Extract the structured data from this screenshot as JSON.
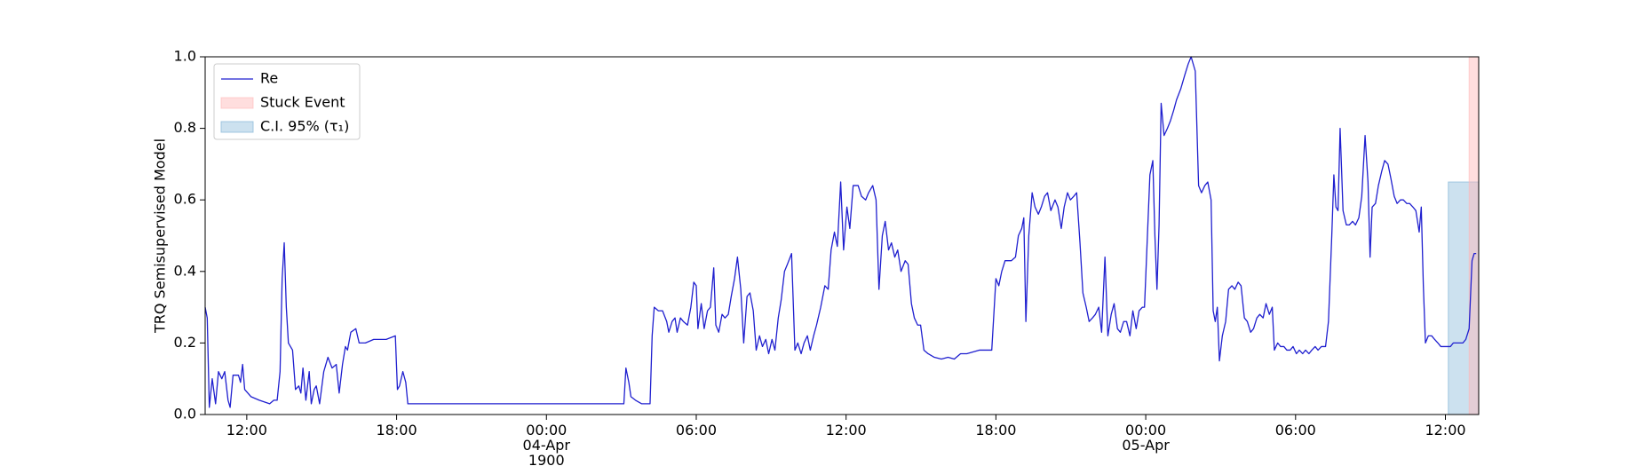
{
  "chart_data": {
    "type": "line",
    "ylabel": "TRQ Semisupervised Model",
    "xlim": [
      "1900-04-03T10:20",
      "1900-04-05T13:20"
    ],
    "ylim": [
      0,
      1
    ],
    "yticks": [
      {
        "value": 0,
        "label": "0.0"
      },
      0.2,
      0.4,
      0.6,
      0.8,
      {
        "value": 1,
        "label": "1.0"
      }
    ],
    "xticks": [
      {
        "value": "1900-04-03T12:00",
        "label": "12:00"
      },
      {
        "value": "1900-04-03T18:00",
        "label": "18:00"
      },
      {
        "value": "1900-04-04T00:00",
        "label": "00:00\n04-Apr\n1900"
      },
      {
        "value": "1900-04-04T06:00",
        "label": "06:00"
      },
      {
        "value": "1900-04-04T12:00",
        "label": "12:00"
      },
      {
        "value": "1900-04-04T18:00",
        "label": "18:00"
      },
      {
        "value": "1900-04-05T00:00",
        "label": "00:00\n05-Apr"
      },
      {
        "value": "1900-04-05T06:00",
        "label": "06:00"
      },
      {
        "value": "1900-04-05T12:00",
        "label": "12:00"
      }
    ],
    "legend": "upper left",
    "stuck_event": {
      "name": "Stuck Event",
      "color": "#ffb6b6",
      "x": [
        "1900-04-05T12:57",
        "1900-04-05T13:20"
      ]
    },
    "ci": {
      "name": "C.I. 95% (τ₁)",
      "color": "#8fbcdb",
      "x": [
        "1900-04-05T12:07",
        "1900-04-05T13:20"
      ],
      "values": [
        0,
        0.65
      ]
    },
    "x": [
      "1900-04-03T10:20",
      "1900-04-03T10:25",
      "1900-04-03T10:30",
      "1900-04-03T10:37",
      "1900-04-03T10:45",
      "1900-04-03T10:52",
      "1900-04-03T11:00",
      "1900-04-03T11:07",
      "1900-04-03T11:15",
      "1900-04-03T11:20",
      "1900-04-03T11:27",
      "1900-04-03T11:40",
      "1900-04-03T11:45",
      "1900-04-03T11:50",
      "1900-04-03T11:55",
      "1900-04-03T12:10",
      "1900-04-03T12:30",
      "1900-04-03T12:55",
      "1900-04-03T13:05",
      "1900-04-03T13:13",
      "1900-04-03T13:20",
      "1900-04-03T13:25",
      "1900-04-03T13:30",
      "1900-04-03T13:35",
      "1900-04-03T13:40",
      "1900-04-03T13:50",
      "1900-04-03T13:57",
      "1900-04-03T14:05",
      "1900-04-03T14:10",
      "1900-04-03T14:15",
      "1900-04-03T14:22",
      "1900-04-03T14:30",
      "1900-04-03T14:35",
      "1900-04-03T14:42",
      "1900-04-03T14:47",
      "1900-04-03T14:55",
      "1900-04-03T15:05",
      "1900-04-03T15:15",
      "1900-04-03T15:25",
      "1900-04-03T15:35",
      "1900-04-03T15:42",
      "1900-04-03T15:50",
      "1900-04-03T15:57",
      "1900-04-03T16:02",
      "1900-04-03T16:10",
      "1900-04-03T16:22",
      "1900-04-03T16:30",
      "1900-04-03T16:45",
      "1900-04-03T17:05",
      "1900-04-03T17:35",
      "1900-04-03T17:57",
      "1900-04-03T18:02",
      "1900-04-03T18:07",
      "1900-04-03T18:15",
      "1900-04-03T18:22",
      "1900-04-03T18:27",
      "1900-04-03T22:00",
      "1900-04-04T01:00",
      "1900-04-04T03:06",
      "1900-04-04T03:11",
      "1900-04-04T03:18",
      "1900-04-04T03:23",
      "1900-04-04T03:34",
      "1900-04-04T03:49",
      "1900-04-04T04:09",
      "1900-04-04T04:14",
      "1900-04-04T04:19",
      "1900-04-04T04:29",
      "1900-04-04T04:39",
      "1900-04-04T04:49",
      "1900-04-04T04:54",
      "1900-04-04T05:02",
      "1900-04-04T05:09",
      "1900-04-04T05:14",
      "1900-04-04T05:22",
      "1900-04-04T05:29",
      "1900-04-04T05:39",
      "1900-04-04T05:47",
      "1900-04-04T05:54",
      "1900-04-04T06:00",
      "1900-04-04T06:04",
      "1900-04-04T06:12",
      "1900-04-04T06:19",
      "1900-04-04T06:27",
      "1900-04-04T06:34",
      "1900-04-04T06:42",
      "1900-04-04T06:47",
      "1900-04-04T06:54",
      "1900-04-04T07:02",
      "1900-04-04T07:09",
      "1900-04-04T07:17",
      "1900-04-04T07:24",
      "1900-04-04T07:32",
      "1900-04-04T07:39",
      "1900-04-04T07:47",
      "1900-04-04T07:54",
      "1900-04-04T08:02",
      "1900-04-04T08:09",
      "1900-04-04T08:17",
      "1900-04-04T08:24",
      "1900-04-04T08:32",
      "1900-04-04T08:39",
      "1900-04-04T08:47",
      "1900-04-04T08:54",
      "1900-04-04T09:02",
      "1900-04-04T09:09",
      "1900-04-04T09:17",
      "1900-04-04T09:24",
      "1900-04-04T09:32",
      "1900-04-04T09:39",
      "1900-04-04T09:49",
      "1900-04-04T09:57",
      "1900-04-04T10:04",
      "1900-04-04T10:12",
      "1900-04-04T10:19",
      "1900-04-04T10:27",
      "1900-04-04T10:34",
      "1900-04-04T10:42",
      "1900-04-04T10:49",
      "1900-04-04T10:59",
      "1900-04-04T11:09",
      "1900-04-04T11:17",
      "1900-04-04T11:24",
      "1900-04-04T11:32",
      "1900-04-04T11:39",
      "1900-04-04T11:47",
      "1900-04-04T11:54",
      "1900-04-04T12:02",
      "1900-04-04T12:09",
      "1900-04-04T12:17",
      "1900-04-04T12:29",
      "1900-04-04T12:37",
      "1900-04-04T12:47",
      "1900-04-04T12:54",
      "1900-04-04T13:04",
      "1900-04-04T13:12",
      "1900-04-04T13:19",
      "1900-04-04T13:27",
      "1900-04-04T13:34",
      "1900-04-04T13:42",
      "1900-04-04T13:49",
      "1900-04-04T13:57",
      "1900-04-04T14:04",
      "1900-04-04T14:12",
      "1900-04-04T14:22",
      "1900-04-04T14:29",
      "1900-04-04T14:37",
      "1900-04-04T14:44",
      "1900-04-04T14:52",
      "1900-04-04T14:59",
      "1900-04-04T15:07",
      "1900-04-04T15:17",
      "1900-04-04T15:32",
      "1900-04-04T15:49",
      "1900-04-04T16:05",
      "1900-04-04T16:20",
      "1900-04-04T16:35",
      "1900-04-04T16:50",
      "1900-04-04T17:05",
      "1900-04-04T17:20",
      "1900-04-04T17:35",
      "1900-04-04T17:50",
      "1900-04-04T18:00",
      "1900-04-04T18:07",
      "1900-04-04T18:14",
      "1900-04-04T18:22",
      "1900-04-04T18:37",
      "1900-04-04T18:47",
      "1900-04-04T18:54",
      "1900-04-04T19:02",
      "1900-04-04T19:07",
      "1900-04-04T19:12",
      "1900-04-04T19:19",
      "1900-04-04T19:27",
      "1900-04-04T19:34",
      "1900-04-04T19:42",
      "1900-04-04T19:49",
      "1900-04-04T19:57",
      "1900-04-04T20:04",
      "1900-04-04T20:12",
      "1900-04-04T20:22",
      "1900-04-04T20:29",
      "1900-04-04T20:37",
      "1900-04-04T20:44",
      "1900-04-04T20:52",
      "1900-04-04T20:59",
      "1900-04-04T21:07",
      "1900-04-04T21:14",
      "1900-04-04T21:22",
      "1900-04-04T21:29",
      "1900-04-04T21:37",
      "1900-04-04T21:44",
      "1900-04-04T21:52",
      "1900-04-04T21:59",
      "1900-04-04T22:07",
      "1900-04-04T22:14",
      "1900-04-04T22:22",
      "1900-04-04T22:29",
      "1900-04-04T22:37",
      "1900-04-04T22:44",
      "1900-04-04T22:52",
      "1900-04-04T22:59",
      "1900-04-04T23:07",
      "1900-04-04T23:14",
      "1900-04-04T23:22",
      "1900-04-04T23:29",
      "1900-04-04T23:37",
      "1900-04-04T23:44",
      "1900-04-04T23:52",
      "1900-04-04T23:57",
      "1900-04-05T00:10",
      "1900-04-05T00:17",
      "1900-04-05T00:22",
      "1900-04-05T00:27",
      "1900-04-05T00:32",
      "1900-04-05T00:37",
      "1900-04-05T00:44",
      "1900-04-05T00:52",
      "1900-04-05T00:59",
      "1900-04-05T01:07",
      "1900-04-05T01:14",
      "1900-04-05T01:24",
      "1900-04-05T01:34",
      "1900-04-05T01:42",
      "1900-04-05T01:49",
      "1900-04-05T01:59",
      "1900-04-05T02:07",
      "1900-04-05T02:14",
      "1900-04-05T02:22",
      "1900-04-05T02:29",
      "1900-04-05T02:37",
      "1900-04-05T02:42",
      "1900-04-05T02:47",
      "1900-04-05T02:52",
      "1900-04-05T02:57",
      "1900-04-05T03:04",
      "1900-04-05T03:12",
      "1900-04-05T03:19",
      "1900-04-05T03:27",
      "1900-04-05T03:34",
      "1900-04-05T03:42",
      "1900-04-05T03:49",
      "1900-04-05T03:57",
      "1900-04-05T04:04",
      "1900-04-05T04:12",
      "1900-04-05T04:19",
      "1900-04-05T04:27",
      "1900-04-05T04:34",
      "1900-04-05T04:42",
      "1900-04-05T04:49",
      "1900-04-05T04:57",
      "1900-04-05T05:04",
      "1900-04-05T05:09",
      "1900-04-05T05:17",
      "1900-04-05T05:24",
      "1900-04-05T05:32",
      "1900-04-05T05:39",
      "1900-04-05T05:47",
      "1900-04-05T05:54",
      "1900-04-05T06:02",
      "1900-04-05T06:09",
      "1900-04-05T06:17",
      "1900-04-05T06:24",
      "1900-04-05T06:32",
      "1900-04-05T06:39",
      "1900-04-05T06:47",
      "1900-04-05T06:54",
      "1900-04-05T07:02",
      "1900-04-05T07:12",
      "1900-04-05T07:19",
      "1900-04-05T07:27",
      "1900-04-05T07:32",
      "1900-04-05T07:37",
      "1900-04-05T07:42",
      "1900-04-05T07:47",
      "1900-04-05T07:54",
      "1900-04-05T08:02",
      "1900-04-05T08:09",
      "1900-04-05T08:17",
      "1900-04-05T08:24",
      "1900-04-05T08:32",
      "1900-04-05T08:39",
      "1900-04-05T08:47",
      "1900-04-05T08:54",
      "1900-04-05T08:59",
      "1900-04-05T09:04",
      "1900-04-05T09:12",
      "1900-04-05T09:19",
      "1900-04-05T09:27",
      "1900-04-05T09:34",
      "1900-04-05T09:42",
      "1900-04-05T09:49",
      "1900-04-05T09:57",
      "1900-04-05T10:04",
      "1900-04-05T10:12",
      "1900-04-05T10:19",
      "1900-04-05T10:27",
      "1900-04-05T10:34",
      "1900-04-05T10:42",
      "1900-04-05T10:49",
      "1900-04-05T10:57",
      "1900-04-05T11:02",
      "1900-04-05T11:07",
      "1900-04-05T11:12",
      "1900-04-05T11:19",
      "1900-04-05T11:27",
      "1900-04-05T11:34",
      "1900-04-05T11:42",
      "1900-04-05T11:49",
      "1900-04-05T11:57",
      "1900-04-05T12:04",
      "1900-04-05T12:12",
      "1900-04-05T12:19",
      "1900-04-05T12:27",
      "1900-04-05T12:34",
      "1900-04-05T12:42",
      "1900-04-05T12:49",
      "1900-04-05T12:57",
      "1900-04-05T13:04",
      "1900-04-05T13:09",
      "1900-04-05T13:14"
    ],
    "series": [
      {
        "name": "Re",
        "color": "#1f1fcf",
        "values": [
          0.3,
          0.27,
          0.02,
          0.1,
          0.03,
          0.12,
          0.1,
          0.12,
          0.04,
          0.02,
          0.11,
          0.11,
          0.09,
          0.14,
          0.07,
          0.05,
          0.04,
          0.03,
          0.04,
          0.04,
          0.12,
          0.38,
          0.48,
          0.3,
          0.2,
          0.18,
          0.07,
          0.08,
          0.06,
          0.13,
          0.04,
          0.12,
          0.03,
          0.07,
          0.08,
          0.03,
          0.12,
          0.16,
          0.13,
          0.14,
          0.06,
          0.14,
          0.19,
          0.18,
          0.23,
          0.24,
          0.2,
          0.2,
          0.21,
          0.21,
          0.22,
          0.07,
          0.08,
          0.12,
          0.09,
          0.03,
          0.03,
          0.03,
          0.03,
          0.13,
          0.09,
          0.05,
          0.04,
          0.03,
          0.03,
          0.22,
          0.3,
          0.29,
          0.29,
          0.26,
          0.23,
          0.26,
          0.27,
          0.23,
          0.27,
          0.26,
          0.25,
          0.3,
          0.37,
          0.36,
          0.24,
          0.31,
          0.24,
          0.29,
          0.3,
          0.41,
          0.25,
          0.23,
          0.28,
          0.27,
          0.28,
          0.33,
          0.38,
          0.44,
          0.35,
          0.2,
          0.33,
          0.34,
          0.29,
          0.18,
          0.22,
          0.19,
          0.21,
          0.17,
          0.21,
          0.18,
          0.27,
          0.32,
          0.4,
          0.42,
          0.45,
          0.18,
          0.2,
          0.17,
          0.2,
          0.22,
          0.18,
          0.22,
          0.25,
          0.3,
          0.36,
          0.35,
          0.46,
          0.51,
          0.47,
          0.65,
          0.46,
          0.58,
          0.52,
          0.64,
          0.64,
          0.61,
          0.6,
          0.62,
          0.64,
          0.6,
          0.35,
          0.5,
          0.54,
          0.46,
          0.48,
          0.44,
          0.46,
          0.4,
          0.43,
          0.42,
          0.31,
          0.27,
          0.25,
          0.25,
          0.18,
          0.17,
          0.16,
          0.155,
          0.16,
          0.155,
          0.17,
          0.17,
          0.175,
          0.18,
          0.18,
          0.18,
          0.38,
          0.36,
          0.4,
          0.43,
          0.43,
          0.44,
          0.5,
          0.52,
          0.55,
          0.26,
          0.5,
          0.62,
          0.58,
          0.56,
          0.58,
          0.61,
          0.62,
          0.57,
          0.6,
          0.58,
          0.52,
          0.58,
          0.62,
          0.6,
          0.61,
          0.62,
          0.48,
          0.34,
          0.3,
          0.26,
          0.27,
          0.28,
          0.3,
          0.23,
          0.44,
          0.22,
          0.28,
          0.31,
          0.24,
          0.23,
          0.26,
          0.26,
          0.22,
          0.29,
          0.24,
          0.29,
          0.3,
          0.3,
          0.67,
          0.71,
          0.5,
          0.35,
          0.53,
          0.87,
          0.78,
          0.8,
          0.82,
          0.85,
          0.88,
          0.91,
          0.95,
          0.98,
          1.0,
          0.96,
          0.64,
          0.62,
          0.64,
          0.65,
          0.6,
          0.29,
          0.26,
          0.3,
          0.15,
          0.22,
          0.26,
          0.35,
          0.36,
          0.35,
          0.37,
          0.36,
          0.27,
          0.26,
          0.23,
          0.24,
          0.27,
          0.28,
          0.27,
          0.31,
          0.28,
          0.3,
          0.18,
          0.2,
          0.19,
          0.19,
          0.18,
          0.18,
          0.19,
          0.17,
          0.18,
          0.17,
          0.18,
          0.17,
          0.18,
          0.19,
          0.18,
          0.19,
          0.19,
          0.26,
          0.5,
          0.67,
          0.58,
          0.57,
          0.8,
          0.57,
          0.53,
          0.53,
          0.54,
          0.53,
          0.55,
          0.61,
          0.78,
          0.65,
          0.44,
          0.58,
          0.59,
          0.64,
          0.68,
          0.71,
          0.7,
          0.66,
          0.61,
          0.59,
          0.6,
          0.6,
          0.59,
          0.59,
          0.58,
          0.57,
          0.51,
          0.58,
          0.36,
          0.2,
          0.22,
          0.22,
          0.21,
          0.2,
          0.19,
          0.19,
          0.19,
          0.19,
          0.2,
          0.2,
          0.2,
          0.2,
          0.21,
          0.24,
          0.43,
          0.45,
          0.45
        ]
      }
    ]
  }
}
